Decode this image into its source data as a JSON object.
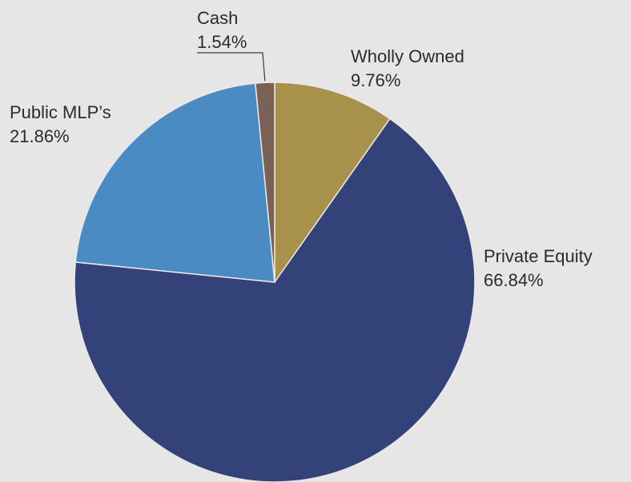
{
  "chart_data": {
    "type": "pie",
    "slices": [
      {
        "label": "Wholly Owned",
        "value": 9.76,
        "value_label": "9.76%",
        "color": "#a8914a"
      },
      {
        "label": "Private Equity",
        "value": 66.84,
        "value_label": "66.84%",
        "color": "#34427a"
      },
      {
        "label": "Public MLP’s",
        "value": 21.86,
        "value_label": "21.86%",
        "color": "#4b8bc3"
      },
      {
        "label": "Cash",
        "value": 1.54,
        "value_label": "1.54%",
        "color": "#7a6155"
      }
    ],
    "start_angle_deg": 0,
    "direction": "clockwise",
    "legend": "none"
  }
}
